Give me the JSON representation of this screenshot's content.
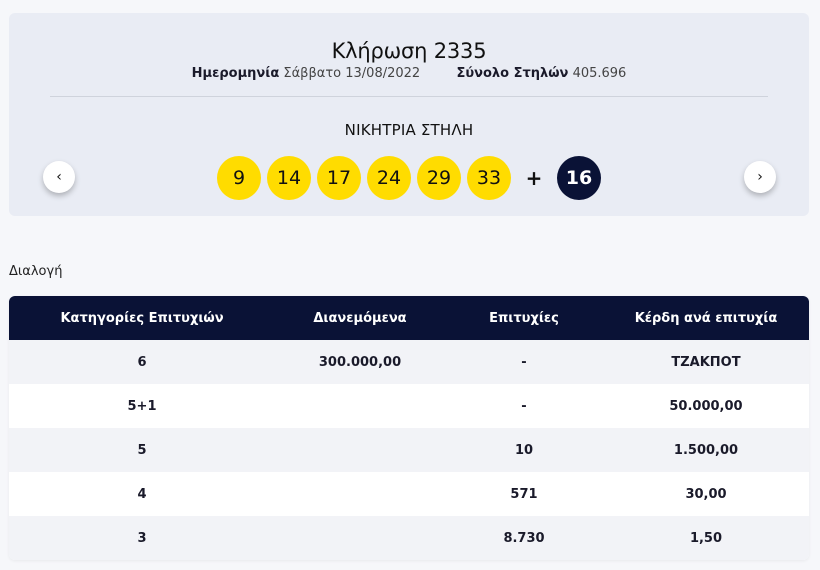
{
  "draw": {
    "title": "Κλήρωση 2335",
    "date_label": "Ημερομηνία",
    "date_value": "Σάββατο 13/08/2022",
    "columns_label": "Σύνολο Στηλών",
    "columns_value": "405.696",
    "winning_label": "ΝΙΚΗΤΡΙΑ ΣΤΗΛΗ",
    "numbers": [
      "9",
      "14",
      "17",
      "24",
      "29",
      "33"
    ],
    "plus": "+",
    "joker": "16",
    "prev_icon": "‹",
    "next_icon": "›"
  },
  "section": {
    "label": "Διαλογή"
  },
  "table": {
    "headers": [
      "Κατηγορίες Επιτυχιών",
      "Διανεμόμενα",
      "Επιτυχίες",
      "Κέρδη ανά επιτυχία"
    ],
    "rows": [
      [
        "6",
        "300.000,00",
        "-",
        "ΤΖΑΚΠΟΤ"
      ],
      [
        "5+1",
        "",
        "-",
        "50.000,00"
      ],
      [
        "5",
        "",
        "10",
        "1.500,00"
      ],
      [
        "4",
        "",
        "571",
        "30,00"
      ],
      [
        "3",
        "",
        "8.730",
        "1,50"
      ]
    ]
  },
  "colors": {
    "ball": "#ffdc00",
    "joker": "#0a1236",
    "header_bg": "#0a1236",
    "card_bg": "#e9ecf4"
  }
}
